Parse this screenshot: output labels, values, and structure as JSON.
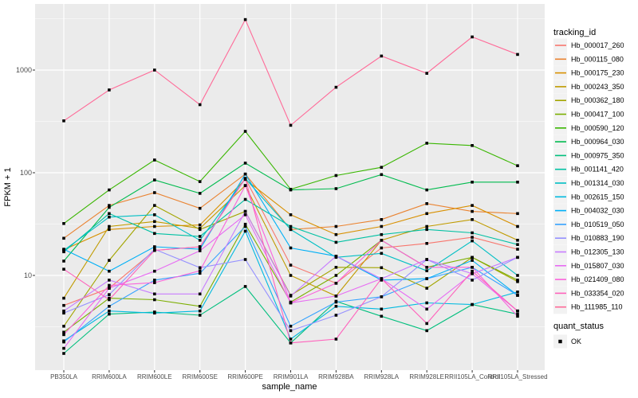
{
  "chart_data": {
    "type": "line",
    "title": "",
    "xlabel": "sample_name",
    "ylabel": "FPKM + 1",
    "y_scale": "log10",
    "y_ticks": [
      10,
      100,
      1000
    ],
    "y_minor_ticks": [
      3.162,
      31.62,
      316.2,
      3162
    ],
    "ylim": [
      1.2,
      4400
    ],
    "grid": true,
    "panel_bg": "#EBEBEB",
    "grid_color": "#FFFFFF",
    "tick_label_color": "#4D4D4D",
    "point_marker": {
      "shape": "square",
      "color": "#000000"
    },
    "categories": [
      "PB350LA",
      "RRIM600LA",
      "RRIM600LE",
      "RRIM600SE",
      "RRIM600PE",
      "RRIM901LA",
      "RRIM928BA",
      "RRIM928LA",
      "RRIM928LE",
      "RRII105LA_Control",
      "RRII105LA_Stressed"
    ],
    "series": [
      {
        "name": "Hb_000017_260",
        "color": "#F8766D",
        "values": [
          5.1,
          7.5,
          17.5,
          19,
          88,
          12.6,
          8.4,
          18.5,
          20.5,
          23.5,
          18
        ]
      },
      {
        "name": "Hb_000115_080",
        "color": "#EA8331",
        "values": [
          23,
          48,
          64,
          45,
          97,
          28,
          30,
          35,
          50,
          42,
          40
        ]
      },
      {
        "name": "Hb_000175_230",
        "color": "#D89000",
        "values": [
          17.8,
          28,
          30,
          31,
          86,
          39,
          25,
          30,
          40,
          48,
          30
        ]
      },
      {
        "name": "Hb_000243_350",
        "color": "#C09B00",
        "values": [
          6,
          30,
          33.5,
          28.7,
          75,
          10,
          6.3,
          22,
          30,
          35,
          22
        ]
      },
      {
        "name": "Hb_000362_180",
        "color": "#A3A500",
        "values": [
          3.2,
          14,
          48,
          28,
          42,
          6.4,
          12,
          11.9,
          7.5,
          15,
          8.7
        ]
      },
      {
        "name": "Hb_000417_100",
        "color": "#7CAE00",
        "values": [
          2.8,
          6,
          5.8,
          5,
          31.5,
          5.5,
          10,
          22,
          12,
          15,
          9
        ]
      },
      {
        "name": "Hb_000590_120",
        "color": "#39B600",
        "values": [
          32,
          68,
          133,
          82,
          253,
          69,
          94,
          113,
          194,
          184,
          117
        ]
      },
      {
        "name": "Hb_000964_030",
        "color": "#00BB4E",
        "values": [
          13.8,
          46,
          85,
          63,
          124,
          68,
          70,
          96,
          68,
          81,
          81
        ]
      },
      {
        "name": "Hb_000975_350",
        "color": "#00BF7D",
        "values": [
          1.74,
          4.2,
          4.4,
          4.1,
          7.8,
          2.2,
          5.6,
          4.0,
          2.9,
          5.2,
          4.2
        ]
      },
      {
        "name": "Hb_001141_420",
        "color": "#00C1A3",
        "values": [
          17,
          40,
          25.6,
          24,
          55,
          30,
          21,
          25,
          28,
          26,
          20
        ]
      },
      {
        "name": "Hb_001314_030",
        "color": "#00BFC4",
        "values": [
          17.5,
          37,
          39,
          22,
          88,
          28,
          15,
          16.4,
          11.1,
          21.7,
          10
        ]
      },
      {
        "name": "Hb_002615_150",
        "color": "#00BAE0",
        "values": [
          2.3,
          4.5,
          4.3,
          4.5,
          27,
          2.4,
          5,
          4.7,
          5.4,
          5.2,
          6.9
        ]
      },
      {
        "name": "Hb_004032_030",
        "color": "#00B0F6",
        "values": [
          18,
          11,
          19,
          18,
          97,
          18.5,
          15.4,
          9,
          9.3,
          14,
          6.4
        ]
      },
      {
        "name": "Hb_010519_050",
        "color": "#35A2FF",
        "values": [
          2.25,
          5,
          9,
          10.5,
          30,
          3.2,
          5.5,
          6.2,
          9.3,
          12,
          6.4
        ]
      },
      {
        "name": "Hb_010883_190",
        "color": "#9590FF",
        "values": [
          4.3,
          6.5,
          18,
          11.9,
          14.3,
          2.9,
          4.1,
          6.2,
          14.3,
          9,
          15
        ]
      },
      {
        "name": "Hb_012305_130",
        "color": "#C77CFF",
        "values": [
          4.5,
          9,
          6.6,
          6.6,
          42,
          6.3,
          15.4,
          9.3,
          14.3,
          10.4,
          15
        ]
      },
      {
        "name": "Hb_015807_030",
        "color": "#E76BF3",
        "values": [
          1.95,
          7.5,
          11,
          17.4,
          39,
          5.4,
          6.3,
          9.3,
          4.7,
          10.4,
          4.5
        ]
      },
      {
        "name": "Hb_021409_080",
        "color": "#FA62DB",
        "values": [
          2.65,
          8,
          8.5,
          11.1,
          75,
          5.4,
          8.4,
          22,
          12,
          12,
          4
        ]
      },
      {
        "name": "Hb_033354_020",
        "color": "#FF62BC",
        "values": [
          11.5,
          5.8,
          17.5,
          19,
          88,
          2.2,
          2.4,
          9.3,
          3.4,
          11,
          4.5
        ]
      },
      {
        "name": "Hb_111985_110",
        "color": "#FF6A98",
        "values": [
          320,
          640,
          1000,
          460,
          3100,
          290,
          680,
          1370,
          930,
          2100,
          1420
        ]
      }
    ],
    "legends": {
      "tracking_id": {
        "title": "tracking_id"
      },
      "quant_status": {
        "title": "quant_status",
        "items": [
          {
            "label": "OK",
            "marker": "square",
            "color": "#000000"
          }
        ]
      }
    }
  }
}
